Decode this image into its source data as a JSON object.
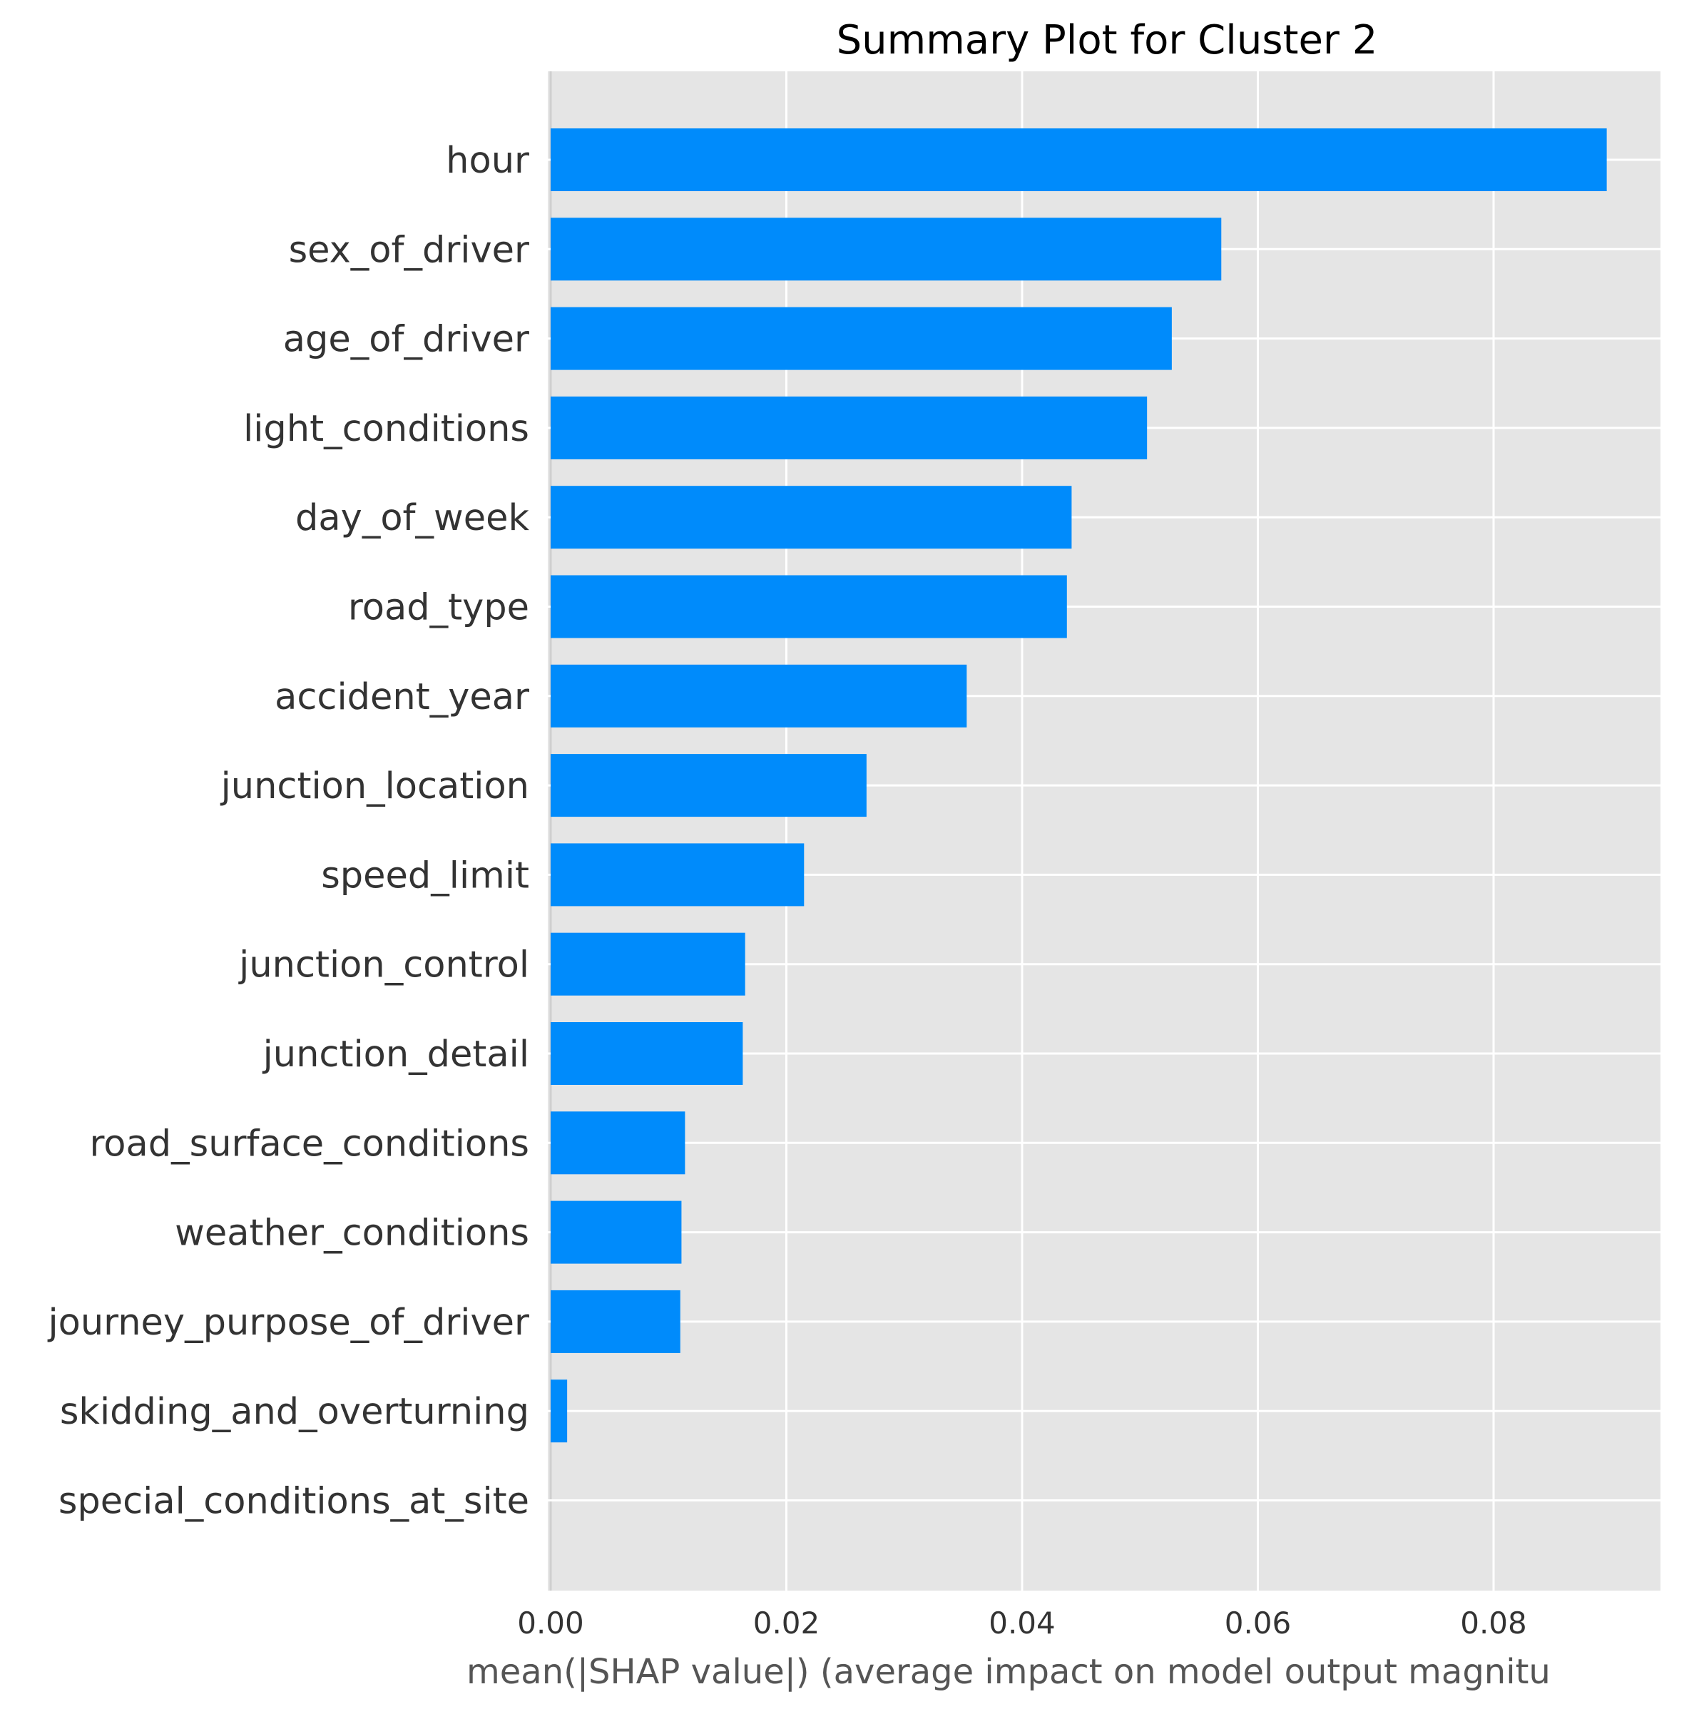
{
  "chart_data": {
    "type": "bar",
    "orientation": "horizontal",
    "title": "Summary Plot for Cluster 2",
    "xlabel": "mean(|SHAP value|) (average impact on model output magnitu",
    "ylabel": "",
    "xlim": [
      0,
      0.094
    ],
    "xticks": [
      "0.00",
      "0.02",
      "0.04",
      "0.06",
      "0.08"
    ],
    "xtick_values": [
      0.0,
      0.02,
      0.04,
      0.06,
      0.08
    ],
    "grid": true,
    "bar_color": "#008bfb",
    "plot_background": "#e5e5e5",
    "categories": [
      "hour",
      "sex_of_driver",
      "age_of_driver",
      "light_conditions",
      "day_of_week",
      "road_type",
      "accident_year",
      "junction_location",
      "speed_limit",
      "junction_control",
      "junction_detail",
      "road_surface_conditions",
      "weather_conditions",
      "journey_purpose_of_driver",
      "skidding_and_overturning",
      "special_conditions_at_site"
    ],
    "values": [
      0.0896,
      0.0569,
      0.0527,
      0.0506,
      0.0442,
      0.0438,
      0.0353,
      0.0268,
      0.0215,
      0.0165,
      0.0163,
      0.0114,
      0.0111,
      0.011,
      0.0014,
      0.0
    ]
  }
}
